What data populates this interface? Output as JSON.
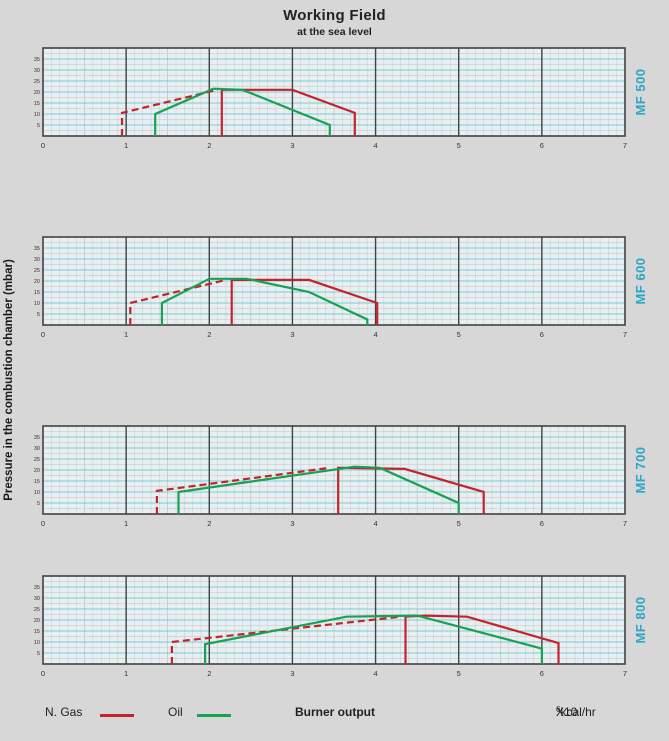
{
  "title": "Working Field",
  "subtitle": "at the sea level",
  "y_axis_label": "Pressure in the combustion chamber (mbar)",
  "legend": {
    "gas_label": "N. Gas",
    "oil_label": "Oil",
    "x_axis_label": "Burner output",
    "unit_prefix": "X10",
    "unit_exponent": "6",
    "unit_suffix": " kcal/hr"
  },
  "colors": {
    "gas": "#c4232b",
    "oil": "#18a152",
    "model_label": "#2ba6c6",
    "plot_bg": "#e8eff1",
    "grid_minor_v": "#c3ccd2",
    "grid_minor_v_mid": "#a8b2ba",
    "grid_minor_h": "#cabfc8",
    "grid_major_h": "#7accd2",
    "grid_major_v": "#424242",
    "frame": "#424242",
    "tick_text": "#333333"
  },
  "chart_data": [
    {
      "type": "line",
      "model": "MF 500",
      "xlim": [
        0,
        7
      ],
      "ylim": [
        0,
        40
      ],
      "x_ticks": [
        0,
        1,
        2,
        3,
        4,
        5,
        6,
        7
      ],
      "y_ticks": [
        5,
        10,
        15,
        20,
        25,
        30,
        35
      ],
      "series": [
        {
          "name": "N. Gas modulation (dashed)",
          "fuel": "gas",
          "style": "dashed",
          "points": [
            [
              0.95,
              0
            ],
            [
              0.95,
              10.5
            ],
            [
              2.1,
              21
            ]
          ]
        },
        {
          "name": "N. Gas working field",
          "fuel": "gas",
          "style": "solid",
          "points": [
            [
              2.15,
              0
            ],
            [
              2.15,
              21
            ],
            [
              3.0,
              21
            ],
            [
              3.75,
              10.5
            ],
            [
              3.75,
              0
            ]
          ]
        },
        {
          "name": "Oil working field",
          "fuel": "oil",
          "style": "solid",
          "points": [
            [
              1.35,
              0
            ],
            [
              1.35,
              10
            ],
            [
              2.05,
              21.5
            ],
            [
              2.4,
              21
            ],
            [
              3.45,
              5
            ],
            [
              3.45,
              0
            ]
          ]
        }
      ]
    },
    {
      "type": "line",
      "model": "MF 600",
      "xlim": [
        0,
        7
      ],
      "ylim": [
        0,
        40
      ],
      "x_ticks": [
        0,
        1,
        2,
        3,
        4,
        5,
        6,
        7
      ],
      "y_ticks": [
        5,
        10,
        15,
        20,
        25,
        30,
        35
      ],
      "series": [
        {
          "name": "N. Gas modulation (dashed)",
          "fuel": "gas",
          "style": "dashed",
          "points": [
            [
              1.05,
              0
            ],
            [
              1.05,
              10
            ],
            [
              2.2,
              20.5
            ]
          ]
        },
        {
          "name": "N. Gas working field",
          "fuel": "gas",
          "style": "solid",
          "points": [
            [
              2.27,
              0
            ],
            [
              2.27,
              20.5
            ],
            [
              3.2,
              20.5
            ],
            [
              4.02,
              10
            ],
            [
              4.02,
              0
            ]
          ]
        },
        {
          "name": "Oil working field",
          "fuel": "oil",
          "style": "solid",
          "points": [
            [
              1.43,
              0
            ],
            [
              1.43,
              10
            ],
            [
              2.0,
              21
            ],
            [
              2.45,
              21
            ],
            [
              3.2,
              15
            ],
            [
              3.9,
              2.5
            ],
            [
              3.9,
              0
            ]
          ]
        }
      ]
    },
    {
      "type": "line",
      "model": "MF 700",
      "xlim": [
        0,
        7
      ],
      "ylim": [
        0,
        40
      ],
      "x_ticks": [
        0,
        1,
        2,
        3,
        4,
        5,
        6,
        7
      ],
      "y_ticks": [
        5,
        10,
        15,
        20,
        25,
        30,
        35
      ],
      "series": [
        {
          "name": "N. Gas modulation (dashed)",
          "fuel": "gas",
          "style": "dashed",
          "points": [
            [
              1.37,
              0
            ],
            [
              1.37,
              10.5
            ],
            [
              3.45,
              21
            ]
          ]
        },
        {
          "name": "N. Gas working field",
          "fuel": "gas",
          "style": "solid",
          "points": [
            [
              3.55,
              0
            ],
            [
              3.55,
              21
            ],
            [
              4.35,
              20.5
            ],
            [
              5.3,
              10
            ],
            [
              5.3,
              0
            ]
          ]
        },
        {
          "name": "Oil working field",
          "fuel": "oil",
          "style": "solid",
          "points": [
            [
              1.63,
              0
            ],
            [
              1.63,
              10
            ],
            [
              3.75,
              21.5
            ],
            [
              4.05,
              21
            ],
            [
              5.0,
              5
            ],
            [
              5.0,
              0
            ]
          ]
        }
      ]
    },
    {
      "type": "line",
      "model": "MF 800",
      "xlim": [
        0,
        7
      ],
      "ylim": [
        0,
        40
      ],
      "x_ticks": [
        0,
        1,
        2,
        3,
        4,
        5,
        6,
        7
      ],
      "y_ticks": [
        5,
        10,
        15,
        20,
        25,
        30,
        35
      ],
      "series": [
        {
          "name": "N. Gas modulation (dashed)",
          "fuel": "gas",
          "style": "dashed",
          "points": [
            [
              1.55,
              0
            ],
            [
              1.55,
              10
            ],
            [
              4.3,
              21.5
            ]
          ]
        },
        {
          "name": "N. Gas working field",
          "fuel": "gas",
          "style": "solid",
          "points": [
            [
              4.36,
              0
            ],
            [
              4.36,
              21.5
            ],
            [
              4.6,
              22
            ],
            [
              5.1,
              21.5
            ],
            [
              6.2,
              9.5
            ],
            [
              6.2,
              0
            ]
          ]
        },
        {
          "name": "Oil working field",
          "fuel": "oil",
          "style": "solid",
          "points": [
            [
              1.95,
              0
            ],
            [
              1.95,
              9
            ],
            [
              3.65,
              21.5
            ],
            [
              4.5,
              22
            ],
            [
              6.0,
              7
            ],
            [
              6.0,
              0
            ]
          ]
        }
      ]
    }
  ]
}
